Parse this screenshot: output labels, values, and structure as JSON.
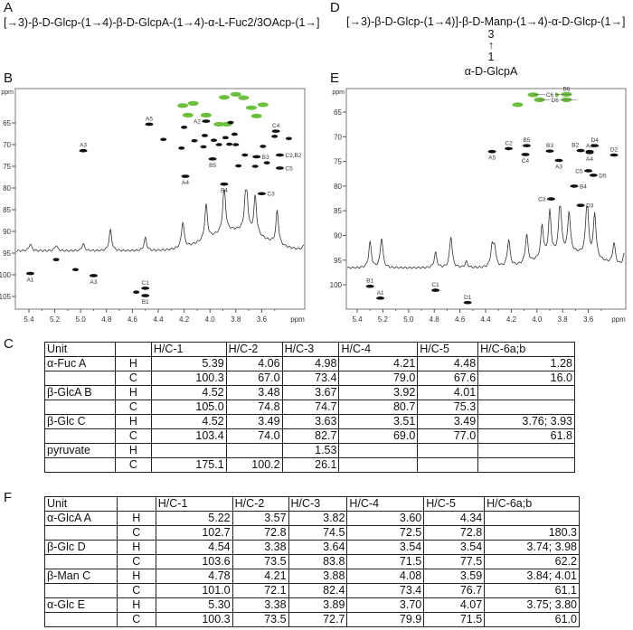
{
  "panels": {
    "A": "A",
    "B": "B",
    "C": "C",
    "D": "D",
    "E": "E",
    "F": "F"
  },
  "structure_A": "[→3)-β-D-Glcp-(1→4)-β-D-GlcpA-(1→4)-α-L-Fuc2/3OAcp-(1→]",
  "structure_D": {
    "main": "[→3)-β-D-Glcp-(1→4)]-β-D-Manp-(1→4)-α-D-Glcp-(1→]",
    "branch_pos": "3",
    "branch_arrow": "↑",
    "branch_from": "1",
    "branch_unit": "α-D-GlcpA"
  },
  "chart_data": [
    {
      "panel": "B",
      "type": "scatter",
      "subtype": "2D HSQC NMR with 1D 1H projection",
      "xlabel": "ppm",
      "ylabel": "ppm",
      "xlim": [
        5.5,
        3.27
      ],
      "ylim": [
        57,
        108
      ],
      "x_ticks": [
        "5.4",
        "5.2",
        "5.0",
        "4.8",
        "4.6",
        "4.4",
        "4.2",
        "4.0",
        "3.8",
        "3.6"
      ],
      "y_ticks": [
        "65",
        "70",
        "75",
        "80",
        "85",
        "90",
        "95",
        "100",
        "105"
      ],
      "colors": {
        "positive": "#111111",
        "negative": "#6cbf3c"
      },
      "peaks": [
        {
          "label": "A5",
          "x": 4.47,
          "y": 65.3,
          "label_pos": "above"
        },
        {
          "label": "A2",
          "x": 4.03,
          "y": 64.6,
          "label_pos": "left"
        },
        {
          "label": "A3",
          "x": 4.98,
          "y": 71.4,
          "label_pos": "above"
        },
        {
          "label": "C4",
          "x": 3.49,
          "y": 66.9,
          "label_pos": "above"
        },
        {
          "label": "C2,B2",
          "x": 3.46,
          "y": 72.4,
          "label_pos": "right"
        },
        {
          "label": "B3",
          "x": 3.64,
          "y": 72.8,
          "label_pos": "right"
        },
        {
          "label": "B5",
          "x": 3.98,
          "y": 73.3,
          "label_pos": "below"
        },
        {
          "label": "C5",
          "x": 3.46,
          "y": 75.4,
          "label_pos": "right"
        },
        {
          "label": "A4",
          "x": 4.19,
          "y": 77.3,
          "label_pos": "below"
        },
        {
          "label": "B4",
          "x": 3.89,
          "y": 79.1,
          "label_pos": "below"
        },
        {
          "label": "C3",
          "x": 3.6,
          "y": 81.3,
          "label_pos": "right"
        },
        {
          "label": "A1",
          "x": 5.39,
          "y": 99.7,
          "label_pos": "below"
        },
        {
          "label": "A3",
          "x": 4.9,
          "y": 100.2,
          "label_pos": "below"
        },
        {
          "label": "C1",
          "x": 4.5,
          "y": 103.1,
          "label_pos": "above"
        },
        {
          "label": "B1",
          "x": 4.5,
          "y": 104.8,
          "label_pos": "below"
        },
        {
          "x": 4.2,
          "y": 66.0
        },
        {
          "x": 4.04,
          "y": 67.9
        },
        {
          "x": 4.12,
          "y": 69.1
        },
        {
          "x": 3.97,
          "y": 69.0
        },
        {
          "x": 3.88,
          "y": 68.4
        },
        {
          "x": 3.81,
          "y": 67.6
        },
        {
          "x": 3.93,
          "y": 70.0
        },
        {
          "x": 3.85,
          "y": 69.9
        },
        {
          "x": 3.8,
          "y": 70.0
        },
        {
          "x": 4.05,
          "y": 70.5
        },
        {
          "x": 4.22,
          "y": 70.8
        },
        {
          "x": 3.73,
          "y": 72.4
        },
        {
          "x": 3.78,
          "y": 74.9
        },
        {
          "x": 3.65,
          "y": 75.0
        },
        {
          "x": 3.59,
          "y": 70.4
        },
        {
          "x": 3.5,
          "y": 68.1
        },
        {
          "x": 3.39,
          "y": 68.6
        },
        {
          "x": 3.84,
          "y": 64.9
        },
        {
          "x": 3.56,
          "y": 74.2
        },
        {
          "x": 4.57,
          "y": 104.0
        },
        {
          "x": 5.19,
          "y": 96.5
        },
        {
          "x": 5.04,
          "y": 98.8
        },
        {
          "x": 4.36,
          "y": 68.8
        }
      ],
      "negative_peaks": [
        {
          "x": 4.21,
          "y": 61.0
        },
        {
          "x": 4.13,
          "y": 60.5
        },
        {
          "x": 3.89,
          "y": 59.1
        },
        {
          "x": 3.74,
          "y": 59.2
        },
        {
          "x": 3.68,
          "y": 61.5
        },
        {
          "x": 3.59,
          "y": 60.8
        },
        {
          "x": 4.17,
          "y": 63.2
        },
        {
          "x": 4.03,
          "y": 63.2
        },
        {
          "x": 3.93,
          "y": 65.3
        },
        {
          "x": 3.87,
          "y": 65.3
        },
        {
          "x": 3.64,
          "y": 63.4
        },
        {
          "x": 3.8,
          "y": 58.4
        }
      ],
      "projection_peaks": [
        {
          "x": 3.72,
          "i": 1.0
        },
        {
          "x": 3.89,
          "i": 0.82
        },
        {
          "x": 4.03,
          "i": 0.6
        },
        {
          "x": 4.21,
          "i": 0.45
        },
        {
          "x": 3.48,
          "i": 0.58
        },
        {
          "x": 3.65,
          "i": 0.66
        },
        {
          "x": 4.77,
          "i": 0.36
        },
        {
          "x": 4.5,
          "i": 0.22
        },
        {
          "x": 5.39,
          "i": 0.12
        },
        {
          "x": 5.19,
          "i": 0.1
        },
        {
          "x": 4.98,
          "i": 0.12
        },
        {
          "x": 3.26,
          "i": 0.22
        }
      ]
    },
    {
      "panel": "E",
      "type": "scatter",
      "subtype": "2D HSQC NMR with 1D 1H projection",
      "xlabel": "ppm",
      "ylabel": "ppm",
      "xlim": [
        5.48,
        3.19
      ],
      "ylim": [
        60.2,
        105
      ],
      "x_ticks": [
        "5.4",
        "5.2",
        "5.0",
        "4.8",
        "4.6",
        "4.4",
        "4.2",
        "4.0",
        "3.8",
        "3.6"
      ],
      "y_ticks": [
        "65",
        "70",
        "75",
        "80",
        "85",
        "90",
        "95",
        "100"
      ],
      "colors": {
        "positive": "#111111",
        "negative": "#6cbf3c"
      },
      "peaks": [
        {
          "label": "A5",
          "x": 4.35,
          "y": 73.0,
          "label_pos": "below"
        },
        {
          "label": "C2",
          "x": 4.22,
          "y": 72.4,
          "label_pos": "above"
        },
        {
          "label": "B5",
          "x": 4.08,
          "y": 71.8,
          "label_pos": "above"
        },
        {
          "label": "C4",
          "x": 4.09,
          "y": 73.6,
          "label_pos": "below"
        },
        {
          "label": "B3",
          "x": 3.9,
          "y": 72.9,
          "label_pos": "above"
        },
        {
          "label": "A3",
          "x": 3.83,
          "y": 74.8,
          "label_pos": "below"
        },
        {
          "label": "B2",
          "x": 3.66,
          "y": 72.8,
          "label_pos": "aboveleft"
        },
        {
          "label": "A4",
          "x": 3.59,
          "y": 73.0,
          "label_pos": "above"
        },
        {
          "label": "A4",
          "x": 3.59,
          "y": 73.2,
          "label_pos": "below"
        },
        {
          "label": "D4",
          "x": 3.55,
          "y": 71.8,
          "label_pos": "above"
        },
        {
          "label": "D2",
          "x": 3.4,
          "y": 73.7,
          "label_pos": "above"
        },
        {
          "label": "C5",
          "x": 3.6,
          "y": 76.9,
          "label_pos": "left"
        },
        {
          "label": "D5",
          "x": 3.56,
          "y": 77.8,
          "label_pos": "right"
        },
        {
          "label": "B4",
          "x": 3.71,
          "y": 80.0,
          "label_pos": "right"
        },
        {
          "label": "C3",
          "x": 3.89,
          "y": 82.6,
          "label_pos": "left"
        },
        {
          "label": "D3",
          "x": 3.66,
          "y": 83.9,
          "label_pos": "right"
        },
        {
          "label": "B1",
          "x": 5.3,
          "y": 100.3,
          "label_pos": "above"
        },
        {
          "label": "A1",
          "x": 5.22,
          "y": 102.7,
          "label_pos": "above"
        },
        {
          "label": "C1",
          "x": 4.79,
          "y": 101.1,
          "label_pos": "above"
        },
        {
          "label": "D1",
          "x": 4.54,
          "y": 103.6,
          "label_pos": "above"
        }
      ],
      "negative_peaks": [
        {
          "x": 4.03,
          "y": 61.5
        },
        {
          "x": 3.87,
          "y": 61.5
        },
        {
          "x": 3.77,
          "y": 61.4,
          "label": "B6",
          "label_pos": "above"
        },
        {
          "x": 3.98,
          "y": 62.5
        },
        {
          "x": 3.77,
          "y": 62.5
        },
        {
          "x": 4.15,
          "y": 63.5
        }
      ],
      "negative_labels": [
        {
          "label": "C6",
          "x": 3.9,
          "y": 61.4
        },
        {
          "label": "D6",
          "x": 3.86,
          "y": 62.5
        }
      ],
      "projection_peaks": [
        {
          "x": 5.3,
          "i": 0.44
        },
        {
          "x": 5.21,
          "i": 0.51
        },
        {
          "x": 4.79,
          "i": 0.26
        },
        {
          "x": 4.67,
          "i": 0.54
        },
        {
          "x": 4.55,
          "i": 0.1
        },
        {
          "x": 4.35,
          "i": 0.33
        },
        {
          "x": 4.33,
          "i": 0.33
        },
        {
          "x": 4.22,
          "i": 0.46
        },
        {
          "x": 4.08,
          "i": 0.49
        },
        {
          "x": 3.96,
          "i": 0.56
        },
        {
          "x": 3.9,
          "i": 0.75
        },
        {
          "x": 3.82,
          "i": 0.95
        },
        {
          "x": 3.75,
          "i": 0.69
        },
        {
          "x": 3.61,
          "i": 1.0
        },
        {
          "x": 3.55,
          "i": 0.75
        },
        {
          "x": 3.4,
          "i": 0.36
        },
        {
          "x": 3.32,
          "i": 0.2
        }
      ]
    }
  ],
  "table_C": {
    "headers": [
      "Unit",
      "",
      "H/C-1",
      "H/C-2",
      "H/C-3",
      "H/C-4",
      "H/C-5",
      "H/C-6a;b"
    ],
    "rows": [
      [
        "α-Fuc A",
        "H",
        "5.39",
        "4.06",
        "4.98",
        "4.21",
        "4.48",
        "1.28"
      ],
      [
        "",
        "C",
        "100.3",
        "67.0",
        "73.4",
        "79.0",
        "67.6",
        "16.0"
      ],
      [
        "β-GlcA B",
        "H",
        "4.52",
        "3.48",
        "3.67",
        "3.92",
        "4.01",
        ""
      ],
      [
        "",
        "C",
        "105.0",
        "74.8",
        "74.7",
        "80.7",
        "75.3",
        ""
      ],
      [
        "β-Glc C",
        "H",
        "4.52",
        "3.49",
        "3.63",
        "3.51",
        "3.49",
        "3.76; 3.93"
      ],
      [
        "",
        "C",
        "103.4",
        "74.0",
        "82.7",
        "69.0",
        "77.0",
        "61.8"
      ],
      [
        "pyruvate",
        "H",
        "",
        "",
        "1.53",
        "",
        "",
        ""
      ],
      [
        "",
        "C",
        "175.1",
        "100.2",
        "26.1",
        "",
        "",
        ""
      ]
    ]
  },
  "table_F": {
    "headers": [
      "Unit",
      "",
      "H/C-1",
      "H/C-2",
      "H/C-3",
      "H/C-4",
      "H/C-5",
      "H/C-6a;b"
    ],
    "rows": [
      [
        "α-GlcA A",
        "H",
        "5.22",
        "3.57",
        "3.82",
        "3.60",
        "4.34",
        ""
      ],
      [
        "",
        "C",
        "102.7",
        "72.8",
        "74.5",
        "72.5",
        "72.8",
        "180.3"
      ],
      [
        "β-Glc D",
        "H",
        "4.54",
        "3.38",
        "3.64",
        "3.54",
        "3.54",
        "3.74; 3.98"
      ],
      [
        "",
        "C",
        "103.6",
        "73.5",
        "83.8",
        "71.5",
        "77.5",
        "62.2"
      ],
      [
        "β-Man C",
        "H",
        "4.78",
        "4.21",
        "3.88",
        "4.08",
        "3.59",
        "3.84; 4.01"
      ],
      [
        "",
        "C",
        "101.0",
        "72.1",
        "82.4",
        "73.4",
        "76.7",
        "61.1"
      ],
      [
        "α-Glc E",
        "H",
        "5.30",
        "3.38",
        "3.89",
        "3.70",
        "4.07",
        "3.75; 3.80"
      ],
      [
        "",
        "C",
        "100.3",
        "73.5",
        "72.7",
        "79.9",
        "71.5",
        "61.0"
      ]
    ]
  }
}
